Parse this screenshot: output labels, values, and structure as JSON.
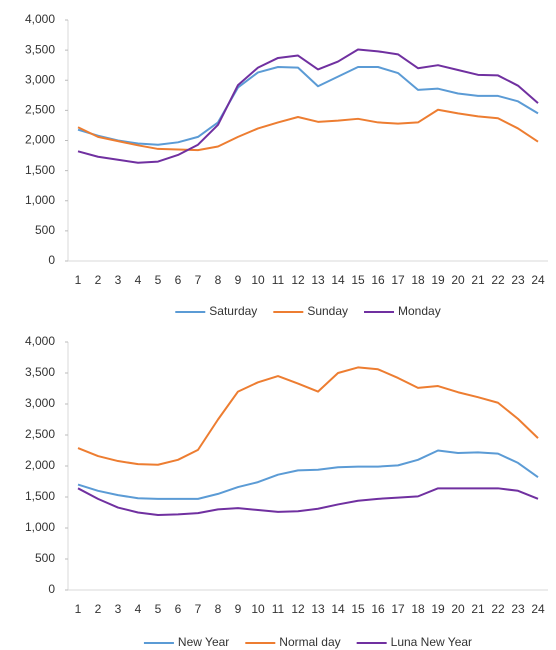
{
  "chart_data": [
    {
      "type": "line",
      "categories": [
        "1",
        "2",
        "3",
        "4",
        "5",
        "6",
        "7",
        "8",
        "9",
        "10",
        "11",
        "12",
        "13",
        "14",
        "15",
        "16",
        "17",
        "18",
        "19",
        "20",
        "21",
        "22",
        "23",
        "24"
      ],
      "series": [
        {
          "name": "Saturday",
          "color": "#5b9bd5",
          "values": [
            2180,
            2080,
            2000,
            1950,
            1930,
            1970,
            2060,
            2300,
            2880,
            3130,
            3220,
            3210,
            2900,
            3060,
            3220,
            3220,
            3120,
            2840,
            2860,
            2780,
            2740,
            2740,
            2650,
            2450
          ]
        },
        {
          "name": "Sunday",
          "color": "#ed7d31",
          "values": [
            2220,
            2060,
            1990,
            1920,
            1860,
            1850,
            1840,
            1900,
            2060,
            2200,
            2300,
            2390,
            2310,
            2330,
            2360,
            2300,
            2280,
            2300,
            2510,
            2450,
            2400,
            2370,
            2200,
            1980
          ]
        },
        {
          "name": "Monday",
          "color": "#7030a0",
          "values": [
            1820,
            1730,
            1680,
            1630,
            1650,
            1760,
            1930,
            2260,
            2920,
            3210,
            3370,
            3410,
            3180,
            3310,
            3510,
            3480,
            3430,
            3200,
            3250,
            3170,
            3090,
            3080,
            2910,
            2620
          ]
        }
      ],
      "ylim": [
        0,
        4000
      ],
      "yticks": [
        0,
        500,
        {
          "value": 1000,
          "label": "1,000"
        },
        {
          "value": 1500,
          "label": "1,500"
        },
        {
          "value": 2000,
          "label": "2,000"
        },
        {
          "value": 2500,
          "label": "2,500"
        },
        {
          "value": 3000,
          "label": "3,000"
        },
        {
          "value": 3500,
          "label": "3,500"
        },
        {
          "value": 4000,
          "label": "4,000"
        }
      ],
      "grid": false,
      "legend": "bottom"
    },
    {
      "type": "line",
      "categories": [
        "1",
        "2",
        "3",
        "4",
        "5",
        "6",
        "7",
        "8",
        "9",
        "10",
        "11",
        "12",
        "13",
        "14",
        "15",
        "16",
        "17",
        "18",
        "19",
        "20",
        "21",
        "22",
        "23",
        "24"
      ],
      "series": [
        {
          "name": "New Year",
          "color": "#5b9bd5",
          "values": [
            1700,
            1600,
            1530,
            1480,
            1470,
            1470,
            1470,
            1550,
            1660,
            1740,
            1860,
            1930,
            1940,
            1980,
            1990,
            1990,
            2010,
            2100,
            2250,
            2210,
            2220,
            2200,
            2050,
            1820
          ]
        },
        {
          "name": "Normal day",
          "color": "#ed7d31",
          "values": [
            2290,
            2160,
            2080,
            2030,
            2020,
            2100,
            2260,
            2750,
            3200,
            3350,
            3450,
            3330,
            3200,
            3500,
            3590,
            3560,
            3420,
            3260,
            3290,
            3190,
            3110,
            3020,
            2760,
            2450
          ]
        },
        {
          "name": "Luna New Year",
          "color": "#7030a0",
          "values": [
            1640,
            1470,
            1330,
            1250,
            1210,
            1220,
            1240,
            1300,
            1320,
            1290,
            1260,
            1270,
            1310,
            1380,
            1440,
            1470,
            1490,
            1510,
            1640,
            1640,
            1640,
            1640,
            1600,
            1470
          ]
        }
      ],
      "ylim": [
        0,
        4000
      ],
      "yticks": [
        0,
        500,
        {
          "value": 1000,
          "label": "1,000"
        },
        {
          "value": 1500,
          "label": "1,500"
        },
        {
          "value": 2000,
          "label": "2,000"
        },
        {
          "value": 2500,
          "label": "2,500"
        },
        {
          "value": 3000,
          "label": "3,000"
        },
        {
          "value": 3500,
          "label": "3,500"
        },
        {
          "value": 4000,
          "label": "4,000"
        }
      ],
      "grid": false,
      "legend": "bottom"
    }
  ]
}
